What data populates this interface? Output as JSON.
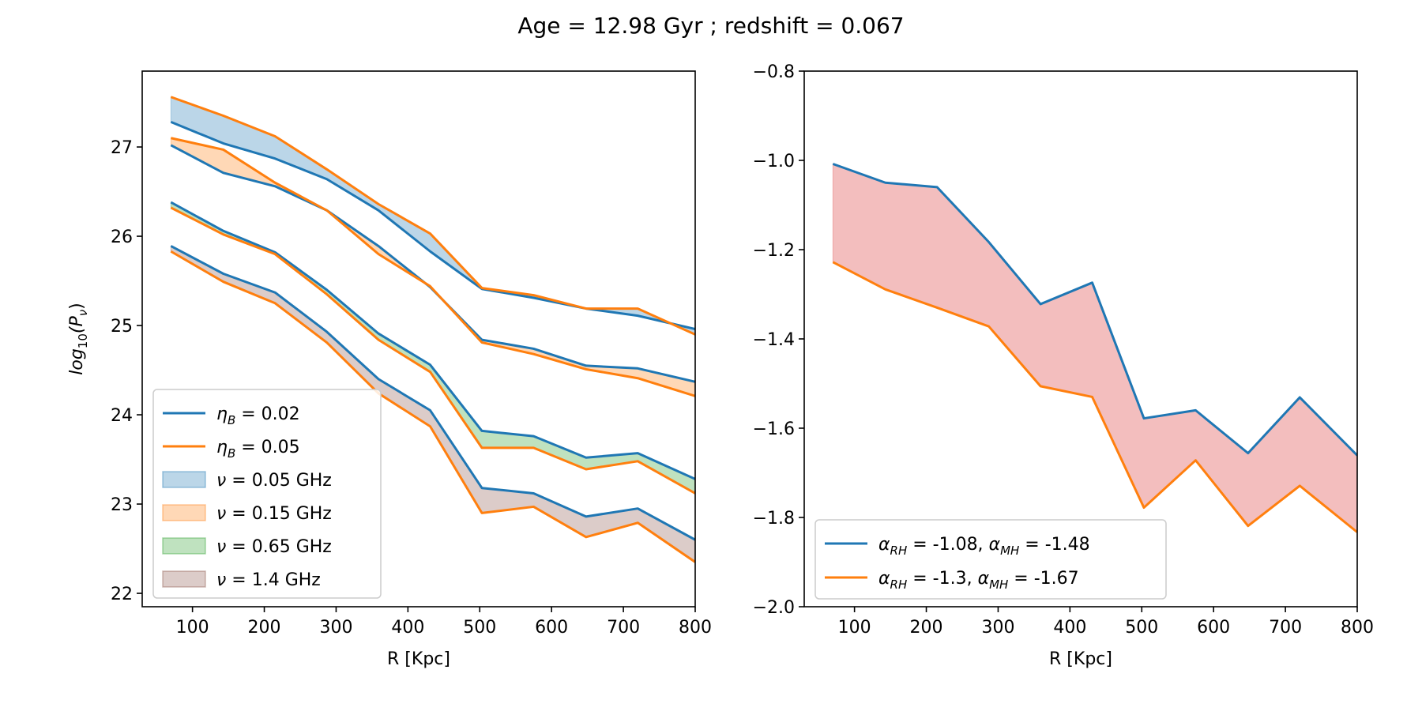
{
  "figure": {
    "suptitle": "Age = 12.98 Gyr ; redshift = 0.067"
  },
  "colors": {
    "blue": "#1f77b4",
    "orange": "#ff7f0e",
    "green": "#2ca02c",
    "brown": "#8c564b",
    "red": "#d62728"
  },
  "chart_data": [
    {
      "type": "line",
      "title": "",
      "xlabel": "R [Kpc]",
      "ylabel": "log10(Pν)",
      "ylabel_parts": {
        "base": "log",
        "sub": "10",
        "mid": "(P",
        "sub2": "ν",
        "end": ")"
      },
      "xlim": [
        30,
        800
      ],
      "ylim": [
        21.85,
        27.85
      ],
      "xticks": [
        100,
        200,
        300,
        400,
        500,
        600,
        700,
        800
      ],
      "yticks": [
        22,
        23,
        24,
        25,
        26,
        27
      ],
      "x": [
        70,
        143,
        215,
        287,
        359,
        431,
        503,
        575,
        648,
        720,
        800
      ],
      "series": [
        {
          "name": "η_B = 0.02, ν = 0.05 GHz",
          "eta": "0.02",
          "freq": "0.05",
          "color": "#1f77b4",
          "values": [
            27.28,
            27.04,
            26.87,
            26.64,
            26.29,
            25.83,
            25.41,
            25.31,
            25.19,
            25.11,
            24.96
          ]
        },
        {
          "name": "η_B = 0.05, ν = 0.05 GHz",
          "eta": "0.05",
          "freq": "0.05",
          "color": "#ff7f0e",
          "values": [
            27.56,
            27.35,
            27.12,
            26.75,
            26.36,
            26.03,
            25.42,
            25.34,
            25.19,
            25.19,
            24.9
          ]
        },
        {
          "name": "η_B = 0.02, ν = 0.15 GHz",
          "eta": "0.02",
          "freq": "0.15",
          "color": "#1f77b4",
          "values": [
            27.02,
            26.71,
            26.56,
            26.29,
            25.89,
            25.43,
            24.84,
            24.74,
            24.55,
            24.52,
            24.37
          ]
        },
        {
          "name": "η_B = 0.05, ν = 0.15 GHz",
          "eta": "0.05",
          "freq": "0.15",
          "color": "#ff7f0e",
          "values": [
            27.1,
            26.97,
            26.6,
            26.29,
            25.8,
            25.44,
            24.81,
            24.68,
            24.51,
            24.41,
            24.21
          ]
        },
        {
          "name": "η_B = 0.02, ν = 0.65 GHz",
          "eta": "0.02",
          "freq": "0.65",
          "color": "#1f77b4",
          "values": [
            26.38,
            26.06,
            25.82,
            25.4,
            24.91,
            24.56,
            23.82,
            23.76,
            23.52,
            23.57,
            23.28
          ]
        },
        {
          "name": "η_B = 0.05, ν = 0.65 GHz",
          "eta": "0.05",
          "freq": "0.65",
          "color": "#ff7f0e",
          "values": [
            26.32,
            26.02,
            25.8,
            25.35,
            24.84,
            24.48,
            23.63,
            23.63,
            23.39,
            23.48,
            23.12
          ]
        },
        {
          "name": "η_B = 0.02, ν = 1.4 GHz",
          "eta": "0.02",
          "freq": "1.4",
          "color": "#1f77b4",
          "values": [
            25.89,
            25.58,
            25.37,
            24.93,
            24.4,
            24.05,
            23.18,
            23.12,
            22.86,
            22.95,
            22.6
          ]
        },
        {
          "name": "η_B = 0.05, ν = 1.4 GHz",
          "eta": "0.05",
          "freq": "1.4",
          "color": "#ff7f0e",
          "values": [
            25.83,
            25.49,
            25.25,
            24.81,
            24.24,
            23.87,
            22.9,
            22.97,
            22.63,
            22.79,
            22.35
          ]
        }
      ],
      "fills": [
        {
          "label": "0.05 GHz",
          "color": "#1f77b4",
          "between": [
            0,
            1
          ]
        },
        {
          "label": "0.15 GHz",
          "color": "#ff7f0e",
          "between": [
            2,
            3
          ]
        },
        {
          "label": "0.65 GHz",
          "color": "#2ca02c",
          "between": [
            4,
            5
          ]
        },
        {
          "label": "1.4 GHz",
          "color": "#8c564b",
          "between": [
            6,
            7
          ]
        }
      ],
      "legend": {
        "position": "lower-left",
        "lines": [
          {
            "sym": "η",
            "sub": "B",
            "text": " = 0.02",
            "color": "#1f77b4"
          },
          {
            "sym": "η",
            "sub": "B",
            "text": " = 0.05",
            "color": "#ff7f0e"
          }
        ],
        "patches": [
          {
            "sym": "ν",
            "text": " = 0.05 GHz",
            "color": "#1f77b4"
          },
          {
            "sym": "ν",
            "text": " = 0.15 GHz",
            "color": "#ff7f0e"
          },
          {
            "sym": "ν",
            "text": " = 0.65 GHz",
            "color": "#2ca02c"
          },
          {
            "sym": "ν",
            "text": " = 1.4 GHz",
            "color": "#8c564b"
          }
        ]
      }
    },
    {
      "type": "line",
      "title": "",
      "xlabel": "R [Kpc]",
      "ylabel": "",
      "xlim": [
        30,
        800
      ],
      "ylim": [
        -2.0,
        -0.8
      ],
      "xticks": [
        100,
        200,
        300,
        400,
        500,
        600,
        700,
        800
      ],
      "yticks": [
        -2.0,
        -1.8,
        -1.6,
        -1.4,
        -1.2,
        -1.0,
        -0.8
      ],
      "x": [
        70,
        143,
        215,
        287,
        359,
        431,
        503,
        575,
        648,
        720,
        800
      ],
      "series": [
        {
          "name": "α_RH = -1.08, α_MH = -1.48",
          "color": "#1f77b4",
          "values": [
            -1.008,
            -1.05,
            -1.06,
            -1.183,
            -1.322,
            -1.274,
            -1.578,
            -1.56,
            -1.656,
            -1.531,
            -1.661
          ]
        },
        {
          "name": "α_RH = -1.3, α_MH = -1.67",
          "color": "#ff7f0e",
          "values": [
            -1.228,
            -1.289,
            -1.33,
            -1.372,
            -1.506,
            -1.53,
            -1.778,
            -1.672,
            -1.819,
            -1.729,
            -1.833
          ]
        }
      ],
      "fills": [
        {
          "label": "",
          "color": "#d62728",
          "between": [
            0,
            1
          ]
        }
      ],
      "legend": {
        "position": "lower-left",
        "lines": [
          {
            "rh": "-1.08",
            "mh": "-1.48",
            "color": "#1f77b4"
          },
          {
            "rh": "-1.3",
            "mh": "-1.67",
            "color": "#ff7f0e"
          }
        ]
      }
    }
  ]
}
